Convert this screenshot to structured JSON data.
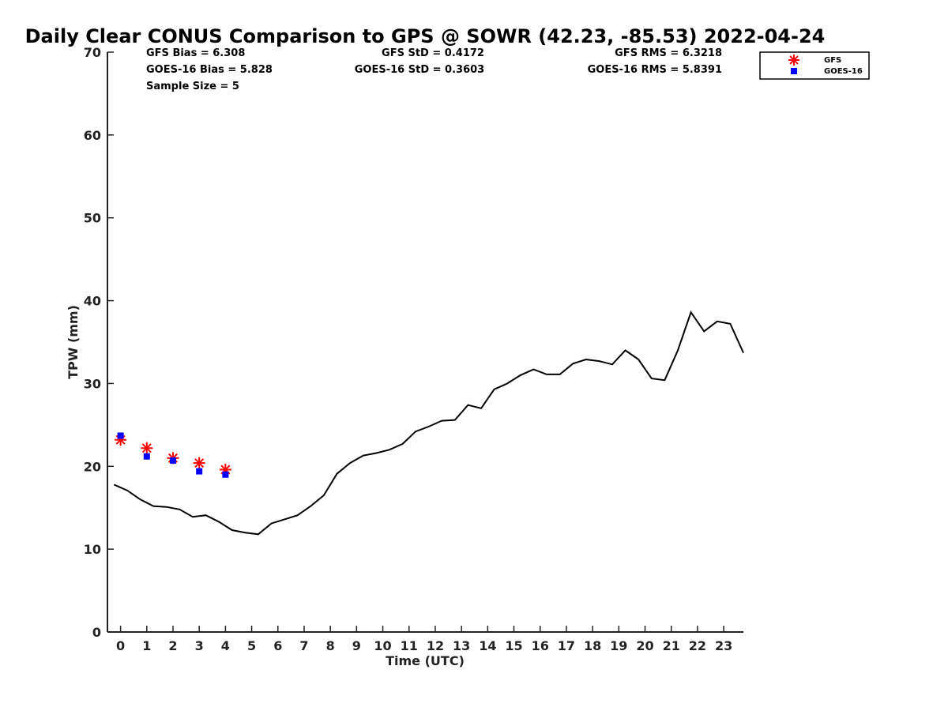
{
  "chart_data": {
    "type": "line",
    "title": "Daily Clear CONUS Comparison to GPS @ SOWR (42.23, -85.53) 2022-04-24",
    "xlabel": "Time (UTC)",
    "ylabel": "TPW (mm)",
    "xlim": [
      -0.5,
      23.75
    ],
    "ylim": [
      0,
      70
    ],
    "x_ticks": [
      "0",
      "1",
      "2",
      "3",
      "4",
      "5",
      "6",
      "7",
      "8",
      "9",
      "10",
      "11",
      "12",
      "13",
      "14",
      "15",
      "16",
      "17",
      "18",
      "19",
      "20",
      "21",
      "22",
      "23"
    ],
    "y_ticks": [
      "0",
      "10",
      "20",
      "30",
      "40",
      "50",
      "60",
      "70"
    ],
    "series": [
      {
        "name": "GPS",
        "style": "line",
        "color": "#000000",
        "x": [
          -0.25,
          0.25,
          0.75,
          1.25,
          1.75,
          2.25,
          2.75,
          3.25,
          3.75,
          4.25,
          4.75,
          5.25,
          5.75,
          6.25,
          6.75,
          7.25,
          7.75,
          8.25,
          8.75,
          9.25,
          9.75,
          10.25,
          10.75,
          11.25,
          11.75,
          12.25,
          12.75,
          13.25,
          13.75,
          14.25,
          14.75,
          15.25,
          15.75,
          16.25,
          16.75,
          17.25,
          17.75,
          18.25,
          18.75,
          19.25,
          19.75,
          20.25,
          20.75,
          21.25,
          21.75,
          22.25,
          22.75,
          23.25,
          23.75
        ],
        "y": [
          17.8,
          17.1,
          16.0,
          15.2,
          15.1,
          14.8,
          13.9,
          14.1,
          13.3,
          12.3,
          12.0,
          11.8,
          13.1,
          13.6,
          14.1,
          15.2,
          16.5,
          19.1,
          20.4,
          21.3,
          21.6,
          22.0,
          22.7,
          24.2,
          24.8,
          25.5,
          25.6,
          27.4,
          27.0,
          29.3,
          30.0,
          31.0,
          31.7,
          31.1,
          31.1,
          32.4,
          32.9,
          32.7,
          32.3,
          34.0,
          32.9,
          30.6,
          30.4,
          34.0,
          38.6,
          36.3,
          37.5,
          37.2,
          33.7
        ]
      },
      {
        "name": "GFS",
        "style": "asterisk",
        "color": "#ff0000",
        "x": [
          0,
          1,
          2,
          3,
          4
        ],
        "y": [
          23.2,
          22.2,
          21.0,
          20.4,
          19.6
        ]
      },
      {
        "name": "GOES-16",
        "style": "square",
        "color": "#0000ff",
        "x": [
          0,
          1,
          2,
          3,
          4
        ],
        "y": [
          23.7,
          21.2,
          20.7,
          19.4,
          19.0
        ]
      }
    ],
    "stats": [
      {
        "text": "GFS Bias = 6.308"
      },
      {
        "text": "GOES-16 Bias = 5.828"
      },
      {
        "text": "Sample Size = 5"
      },
      {
        "text": "GFS StD = 0.4172"
      },
      {
        "text": "GOES-16 StD = 0.3603"
      },
      {
        "text": "GFS RMS = 6.3218"
      },
      {
        "text": "GOES-16 RMS = 5.8391"
      }
    ],
    "legend": {
      "placement": "top-right",
      "entries": [
        {
          "label": "GFS",
          "marker": "asterisk",
          "color": "#ff0000"
        },
        {
          "label": "GOES-16",
          "marker": "square",
          "color": "#0000ff"
        }
      ]
    }
  }
}
